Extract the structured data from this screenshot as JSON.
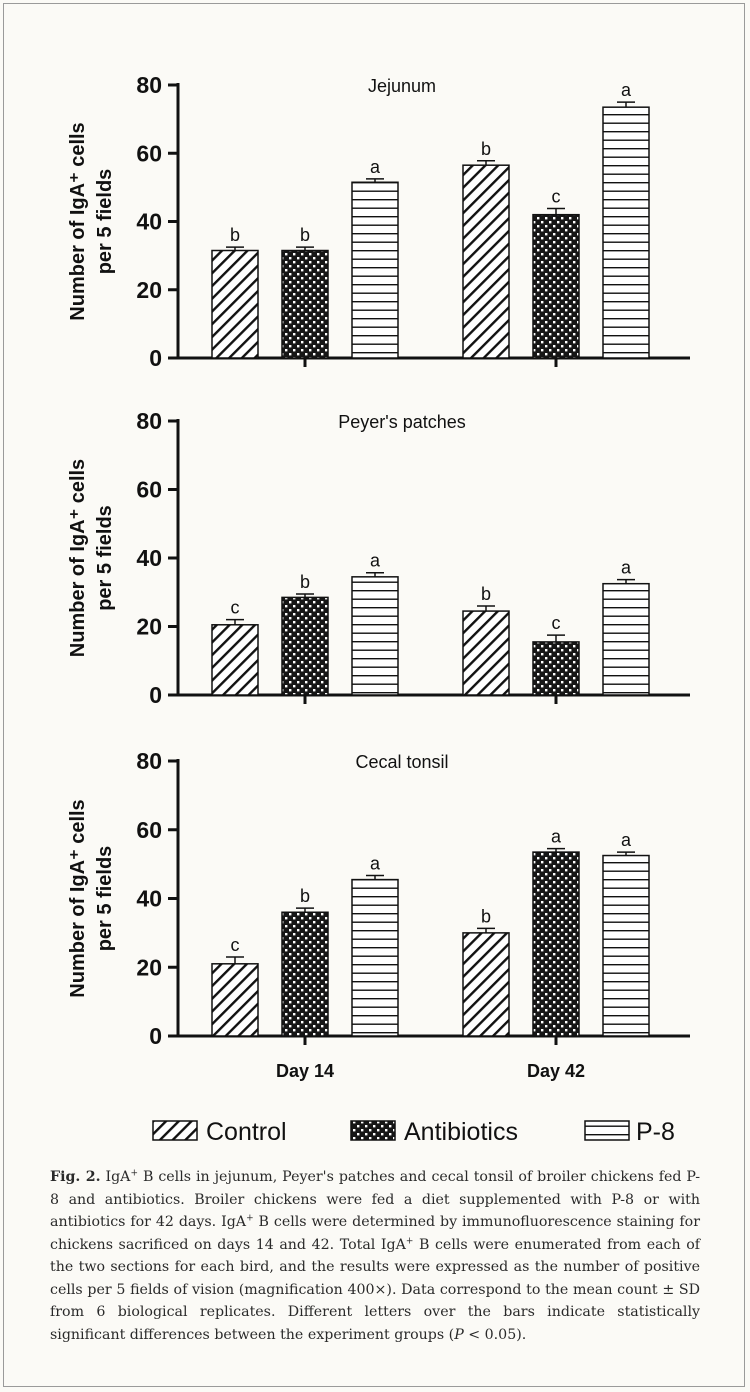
{
  "colors": {
    "ink": "#111111",
    "background": "#fbfaf6",
    "caption": "#2a2a2a"
  },
  "legend": [
    {
      "label": "Control",
      "pattern": "diagonal-hatch"
    },
    {
      "label": "Antibiotics",
      "pattern": "dots"
    },
    {
      "label": "P-8",
      "pattern": "horizontal-lines"
    }
  ],
  "chart_data": [
    {
      "type": "bar",
      "title": "Jejunum",
      "ylabel": "Number of IgA⁺ cells per 5 fields",
      "ylim": [
        0,
        80
      ],
      "yticks": [
        0,
        20,
        40,
        60,
        80
      ],
      "categories": [
        "Day 14",
        "Day 42"
      ],
      "show_category_labels": false,
      "series": [
        {
          "name": "Control",
          "values": [
            31.5,
            56.5
          ],
          "errors": [
            1,
            1.3
          ],
          "letters": [
            "b",
            "b"
          ]
        },
        {
          "name": "Antibiotics",
          "values": [
            31.5,
            42
          ],
          "errors": [
            1,
            1.8
          ],
          "letters": [
            "b",
            "c"
          ]
        },
        {
          "name": "P-8",
          "values": [
            51.5,
            73.5
          ],
          "errors": [
            1,
            1.5
          ],
          "letters": [
            "a",
            "a"
          ]
        }
      ]
    },
    {
      "type": "bar",
      "title": "Peyer's patches",
      "ylabel": "Number of IgA⁺ cells per 5 fields",
      "ylim": [
        0,
        80
      ],
      "yticks": [
        0,
        20,
        40,
        60,
        80
      ],
      "categories": [
        "Day 14",
        "Day 42"
      ],
      "show_category_labels": false,
      "series": [
        {
          "name": "Control",
          "values": [
            20.5,
            24.5
          ],
          "errors": [
            1.5,
            1.5
          ],
          "letters": [
            "c",
            "b"
          ]
        },
        {
          "name": "Antibiotics",
          "values": [
            28.5,
            15.5
          ],
          "errors": [
            1,
            2
          ],
          "letters": [
            "b",
            "c"
          ]
        },
        {
          "name": "P-8",
          "values": [
            34.5,
            32.5
          ],
          "errors": [
            1.2,
            1.2
          ],
          "letters": [
            "a",
            "a"
          ]
        }
      ]
    },
    {
      "type": "bar",
      "title": "Cecal tonsil",
      "ylabel": "Number of IgA⁺ cells per 5 fields",
      "ylim": [
        0,
        80
      ],
      "yticks": [
        0,
        20,
        40,
        60,
        80
      ],
      "categories": [
        "Day 14",
        "Day 42"
      ],
      "show_category_labels": true,
      "series": [
        {
          "name": "Control",
          "values": [
            21,
            30
          ],
          "errors": [
            2,
            1.3
          ],
          "letters": [
            "c",
            "b"
          ]
        },
        {
          "name": "Antibiotics",
          "values": [
            36,
            53.5
          ],
          "errors": [
            1.2,
            1
          ],
          "letters": [
            "b",
            "a"
          ]
        },
        {
          "name": "P-8",
          "values": [
            45.5,
            52.5
          ],
          "errors": [
            1.2,
            1
          ],
          "letters": [
            "a",
            "a"
          ]
        }
      ]
    }
  ],
  "caption": {
    "fig_label": "Fig. 2.",
    "iga_before_sup": "IgA",
    "sup": "+",
    "part1": " B cells in jejunum, Peyer's patches and cecal tonsil of broiler chickens fed P-8 and antibiotics. Broiler chickens were fed a diet supplemented with P-8 or with antibiotics for 42 days. ",
    "part2": " B cells were determined by immunofluorescence staining for chickens sacrificed on days 14 and 42. Total ",
    "part3": " B cells were enumerated from each of the two sections for each bird, and the results were expressed as the number of positive cells per 5 fields of vision (magnification 400×). Data correspond to the mean count ± SD from 6 biological replicates. Different letters over the bars indicate statistically significant differences between the experiment groups (",
    "p_symbol": "P",
    "part4": " < 0.05)."
  }
}
